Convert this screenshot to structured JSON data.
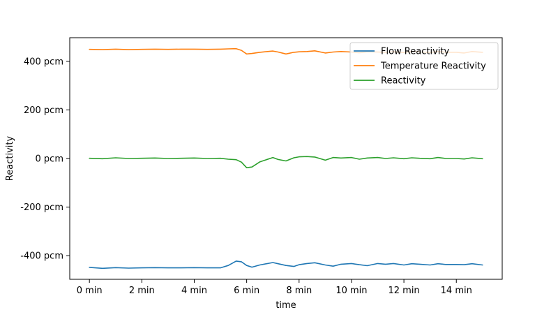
{
  "chart_data": {
    "type": "line",
    "title": "",
    "xlabel": "time",
    "ylabel": "Reactivity",
    "xlim": [
      -0.75,
      15.75
    ],
    "ylim": [
      -497,
      497
    ],
    "xticks": [
      0,
      2,
      4,
      6,
      8,
      10,
      12,
      14
    ],
    "xtick_labels": [
      "0 min",
      "2 min",
      "4 min",
      "6 min",
      "8 min",
      "10 min",
      "12 min",
      "14 min"
    ],
    "yticks": [
      400,
      200,
      0,
      -200,
      -400
    ],
    "ytick_labels": [
      "400 pcm",
      "200 pcm",
      "0 pcm",
      "-200 pcm",
      "-400 pcm"
    ],
    "grid": false,
    "legend_position": "top-right",
    "x": [
      0,
      0.5,
      1,
      1.5,
      2,
      2.5,
      3,
      3.5,
      4,
      4.5,
      5,
      5.3,
      5.6,
      5.8,
      6,
      6.2,
      6.5,
      7,
      7.2,
      7.5,
      7.8,
      8,
      8.3,
      8.6,
      9,
      9.3,
      9.6,
      10,
      10.3,
      10.6,
      11,
      11.3,
      11.6,
      12,
      12.3,
      12.6,
      13,
      13.3,
      13.6,
      14,
      14.3,
      14.6,
      15
    ],
    "series": [
      {
        "name": "Flow Reactivity",
        "color": "#1f77b4",
        "values": [
          -448,
          -452,
          -449,
          -451,
          -450,
          -449,
          -450,
          -450,
          -449,
          -450,
          -450,
          -440,
          -422,
          -425,
          -440,
          -447,
          -438,
          -428,
          -433,
          -440,
          -444,
          -437,
          -432,
          -429,
          -438,
          -443,
          -435,
          -432,
          -437,
          -441,
          -432,
          -435,
          -432,
          -438,
          -433,
          -435,
          -438,
          -433,
          -436,
          -436,
          -437,
          -433,
          -438
        ]
      },
      {
        "name": "Temperature Reactivity",
        "color": "#ff7f0e",
        "values": [
          449,
          448,
          450,
          448,
          449,
          450,
          449,
          450,
          450,
          449,
          450,
          451,
          452,
          445,
          430,
          432,
          437,
          442,
          438,
          430,
          437,
          439,
          440,
          443,
          434,
          438,
          440,
          438,
          435,
          439,
          438,
          437,
          439,
          436,
          440,
          438,
          436,
          440,
          437,
          437,
          434,
          440,
          437
        ]
      },
      {
        "name": "Reactivity",
        "color": "#2ca02c",
        "values": [
          1,
          -1,
          3,
          0,
          1,
          2,
          0,
          1,
          2,
          0,
          1,
          -3,
          -5,
          -15,
          -38,
          -35,
          -14,
          4,
          -4,
          -10,
          3,
          7,
          8,
          6,
          -7,
          4,
          2,
          4,
          -3,
          2,
          4,
          0,
          3,
          -1,
          3,
          1,
          -1,
          4,
          0,
          0,
          -2,
          3,
          -1
        ]
      }
    ]
  }
}
